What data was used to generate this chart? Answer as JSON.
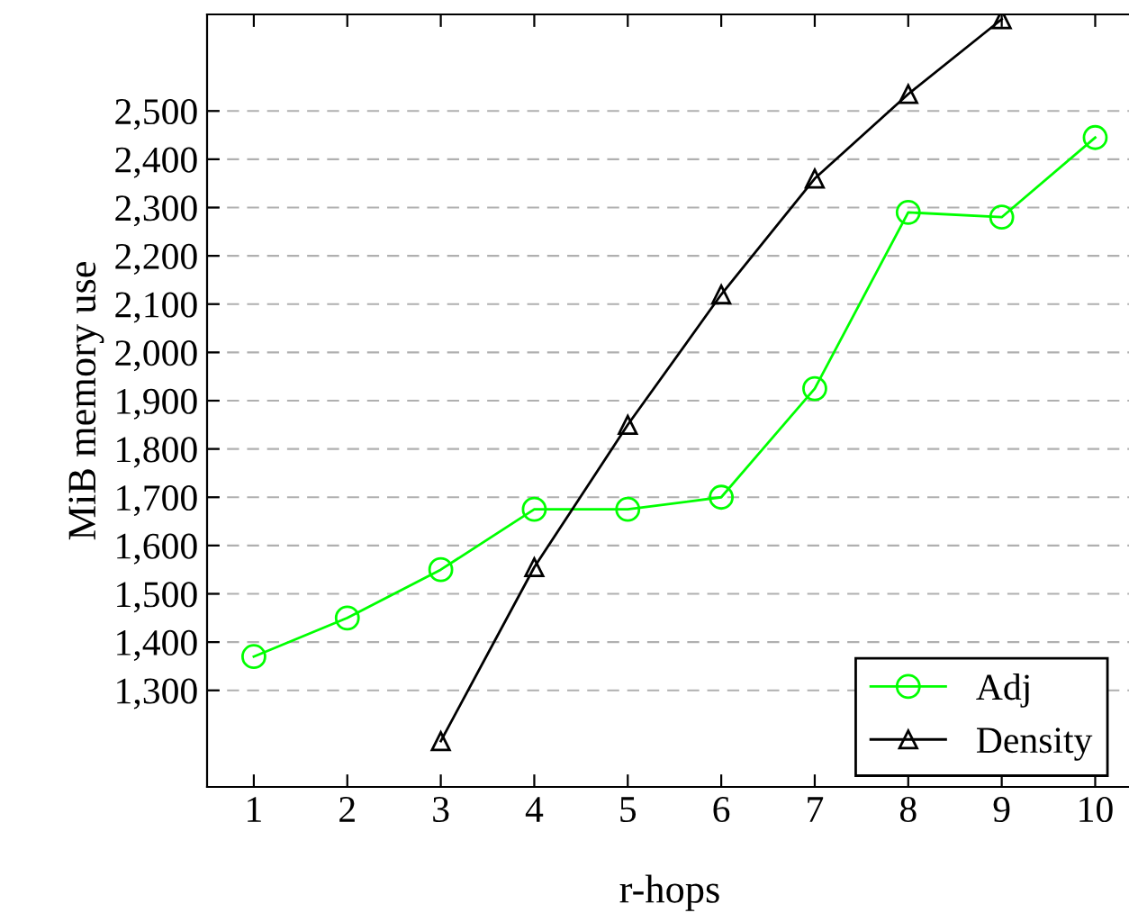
{
  "chart_data": {
    "type": "line",
    "xlabel": "r-hops",
    "ylabel": "MiB memory use",
    "x": [
      1,
      2,
      3,
      4,
      5,
      6,
      7,
      8,
      9,
      10
    ],
    "series": [
      {
        "name": "Adj",
        "color": "#00ff00",
        "marker": "circle",
        "values": [
          1370,
          1450,
          1550,
          1675,
          1675,
          1700,
          1925,
          2290,
          2280,
          2445
        ]
      },
      {
        "name": "Density",
        "color": "#000000",
        "marker": "triangle",
        "values": [
          null,
          null,
          1195,
          1555,
          1850,
          2120,
          2360,
          2535,
          2690,
          null
        ]
      }
    ],
    "xlim": [
      0.5,
      10.4
    ],
    "xticks": [
      1,
      2,
      3,
      4,
      5,
      6,
      7,
      8,
      9,
      10
    ],
    "ylim": [
      1100,
      2700
    ],
    "yticks": [
      {
        "value": 1300,
        "label": "1,300"
      },
      {
        "value": 1400,
        "label": "1,400"
      },
      {
        "value": 1500,
        "label": "1,500"
      },
      {
        "value": 1600,
        "label": "1,600"
      },
      {
        "value": 1700,
        "label": "1,700"
      },
      {
        "value": 1800,
        "label": "1,800"
      },
      {
        "value": 1900,
        "label": "1,900"
      },
      {
        "value": 2000,
        "label": "2,000"
      },
      {
        "value": 2100,
        "label": "2,100"
      },
      {
        "value": 2200,
        "label": "2,200"
      },
      {
        "value": 2300,
        "label": "2,300"
      },
      {
        "value": 2400,
        "label": "2,400"
      },
      {
        "value": 2500,
        "label": "2,500"
      }
    ],
    "grid": "y",
    "legend": "bottom right",
    "line_style": "solid"
  }
}
